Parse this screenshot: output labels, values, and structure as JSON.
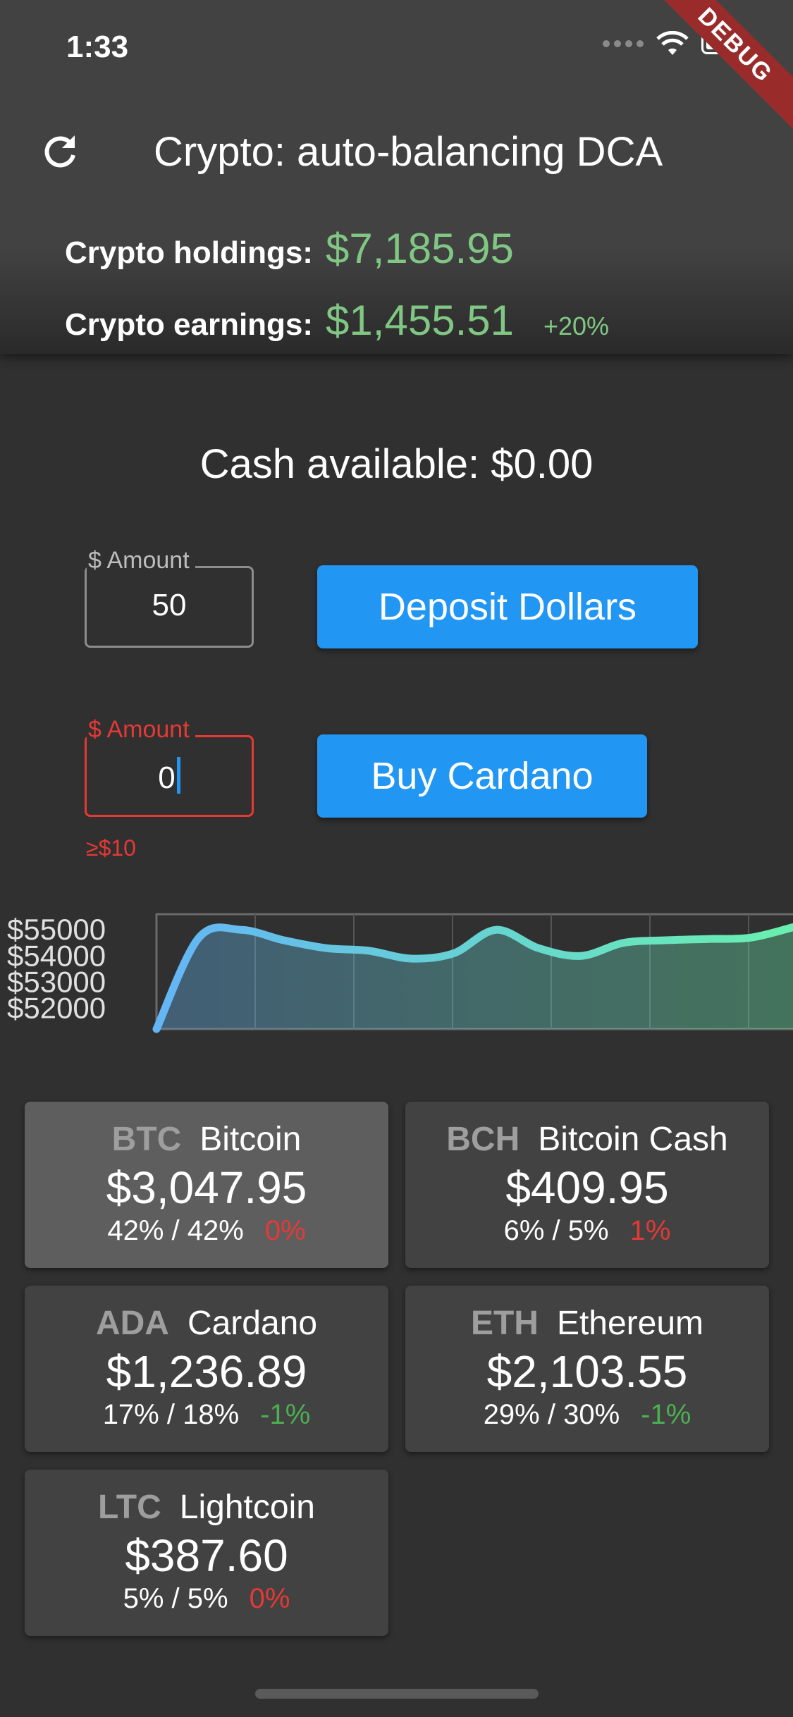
{
  "status_bar": {
    "time": "1:33",
    "debug_label": "DEBUG"
  },
  "header": {
    "title": "Crypto: auto-balancing DCA",
    "holdings_label": "Crypto holdings:",
    "holdings_value": "$7,185.95",
    "earnings_label": "Crypto earnings:",
    "earnings_value": "$1,455.51",
    "earnings_percent": "+20%"
  },
  "cash": {
    "text": "Cash available: $0.00"
  },
  "deposit": {
    "field_label": "$ Amount",
    "field_value": "50",
    "button_label": "Deposit Dollars"
  },
  "buy": {
    "field_label": "$ Amount",
    "field_value": "0",
    "error": "≥$10",
    "button_label": "Buy Cardano"
  },
  "chart_data": {
    "type": "area",
    "y_ticks": [
      "$55000",
      "$54000",
      "$53000",
      "$52000"
    ],
    "ylim": [
      51200,
      55600
    ],
    "series": [
      {
        "values": [
          51200,
          54700,
          55000,
          54600,
          54300,
          54200,
          53900,
          54100,
          55000,
          54300,
          54000,
          54500,
          54600,
          54650,
          54700,
          55100
        ]
      }
    ],
    "colors": {
      "line_start": "#64b5f6",
      "line_end": "#69f0ae"
    }
  },
  "coins": [
    {
      "symbol": "BTC",
      "name": "Bitcoin",
      "value": "$3,047.95",
      "alloc": "42% / 42%",
      "delta": "0%",
      "delta_sign": "neg",
      "selected": true
    },
    {
      "symbol": "BCH",
      "name": "Bitcoin Cash",
      "value": "$409.95",
      "alloc": "6% / 5%",
      "delta": "1%",
      "delta_sign": "neg",
      "selected": false
    },
    {
      "symbol": "ADA",
      "name": "Cardano",
      "value": "$1,236.89",
      "alloc": "17% / 18%",
      "delta": "-1%",
      "delta_sign": "pos",
      "selected": false
    },
    {
      "symbol": "ETH",
      "name": "Ethereum",
      "value": "$2,103.55",
      "alloc": "29% / 30%",
      "delta": "-1%",
      "delta_sign": "pos",
      "selected": false
    },
    {
      "symbol": "LTC",
      "name": "Lightcoin",
      "value": "$387.60",
      "alloc": "5% / 5%",
      "delta": "0%",
      "delta_sign": "neg",
      "selected": false
    }
  ]
}
